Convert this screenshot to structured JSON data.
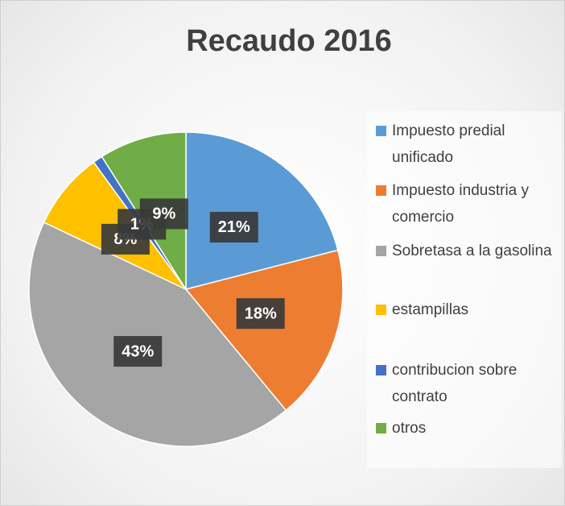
{
  "chart_data": {
    "type": "pie",
    "title": "Recaudo 2016",
    "categories": [
      "Impuesto predial unificado",
      "Impuesto industria y comercio",
      "Sobretasa a la gasolina",
      "estampillas",
      "contribucion sobre contrato",
      "otros"
    ],
    "values": [
      21,
      18,
      43,
      8,
      1,
      9
    ],
    "value_labels": [
      "21%",
      "18%",
      "43%",
      "8%",
      "1%",
      "9%"
    ],
    "colors": [
      "#5b9bd5",
      "#ed7d31",
      "#a5a5a5",
      "#ffc000",
      "#4472c4",
      "#70ad47"
    ],
    "legend": "right"
  }
}
